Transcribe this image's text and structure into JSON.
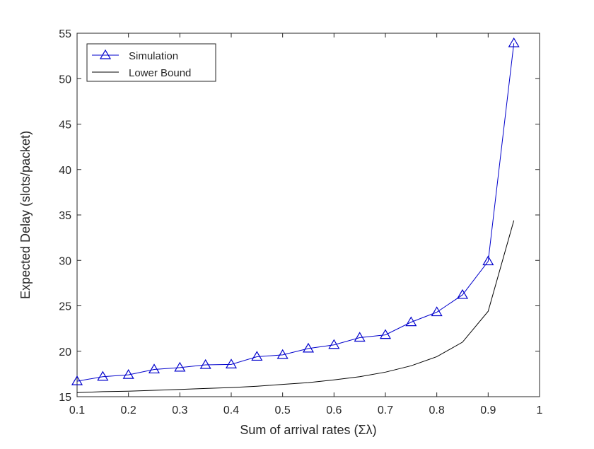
{
  "chart_data": {
    "type": "line",
    "title": "",
    "xlabel": "Sum of arrival rates (Σλ)",
    "ylabel": "Expected Delay (slots/packet)",
    "xlim": [
      0.1,
      1
    ],
    "ylim": [
      15,
      55
    ],
    "xticks": [
      "0.1",
      "0.2",
      "0.3",
      "0.4",
      "0.5",
      "0.6",
      "0.7",
      "0.8",
      "0.9",
      "1"
    ],
    "yticks": [
      "15",
      "20",
      "25",
      "30",
      "35",
      "40",
      "45",
      "50",
      "55"
    ],
    "grid": false,
    "legend_position": "top-left",
    "x": [
      0.1,
      0.15,
      0.2,
      0.25,
      0.3,
      0.35,
      0.4,
      0.45,
      0.5,
      0.55,
      0.6,
      0.65,
      0.7,
      0.75,
      0.8,
      0.85,
      0.9,
      0.95
    ],
    "series": [
      {
        "name": "Simulation",
        "color": "#0000cc",
        "marker": "triangle",
        "values": [
          16.7,
          17.2,
          17.4,
          18.0,
          18.2,
          18.5,
          18.55,
          19.4,
          19.6,
          20.3,
          20.7,
          21.5,
          21.8,
          23.2,
          24.3,
          26.2,
          29.9,
          53.9
        ]
      },
      {
        "name": "Lower Bound",
        "color": "#000000",
        "marker": "none",
        "values": [
          15.45,
          15.55,
          15.6,
          15.7,
          15.8,
          15.9,
          16.0,
          16.15,
          16.35,
          16.55,
          16.85,
          17.2,
          17.7,
          18.4,
          19.4,
          21.0,
          24.4,
          34.4
        ]
      }
    ]
  }
}
